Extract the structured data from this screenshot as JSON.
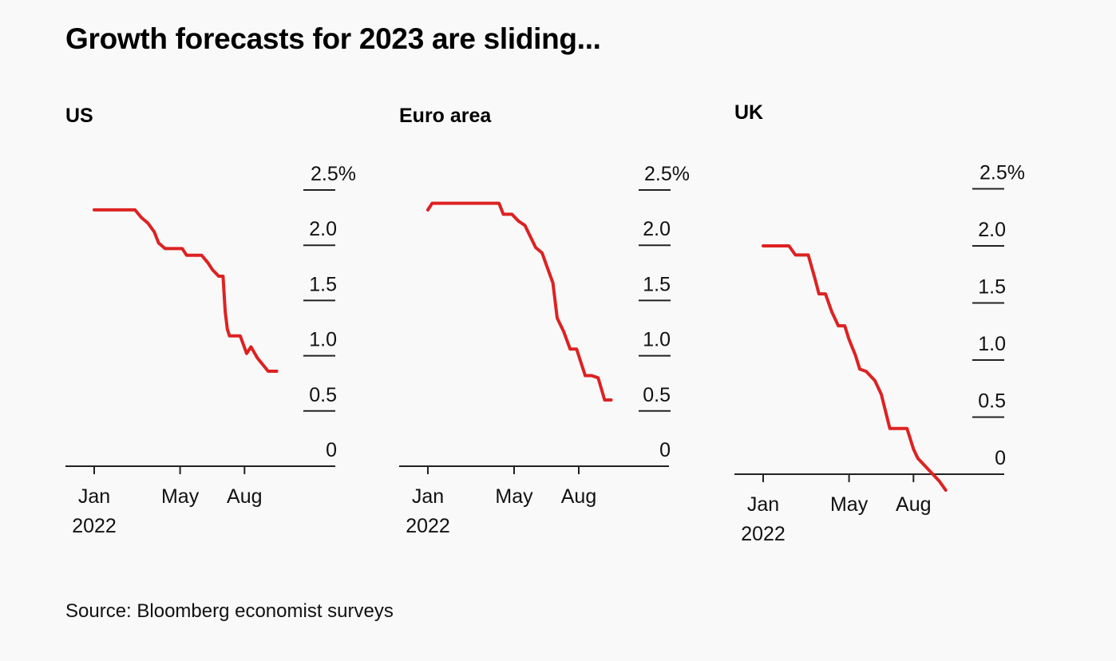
{
  "title": "Growth forecasts for 2023 are sliding...",
  "source": "Source: Bloomberg economist surveys",
  "colors": {
    "line": "#dd2222",
    "axis": "#222222",
    "background": "#f9f9f9"
  },
  "chart_data": [
    {
      "type": "line",
      "title": "US",
      "ylim": [
        0,
        2.5
      ],
      "y_ticks": [
        0,
        0.5,
        1.0,
        1.5,
        2.0,
        2.5
      ],
      "y_tick_labels": [
        "0",
        "0.5",
        "1.0",
        "1.5",
        "2.0",
        "2.5%"
      ],
      "x_ticks": [
        {
          "month": 0,
          "label": "Jan",
          "sublabel": "2022"
        },
        {
          "month": 4,
          "label": "May",
          "sublabel": ""
        },
        {
          "month": 7,
          "label": "Aug",
          "sublabel": ""
        }
      ],
      "x_unit": "months since Jan 2022",
      "series": [
        {
          "x": [
            0,
            1.9,
            2.2,
            2.5,
            2.8,
            3.0,
            3.3,
            4.1,
            4.3,
            5.0,
            5.3,
            5.5,
            5.8,
            6.0,
            6.1,
            6.2,
            6.3,
            6.5,
            6.8,
            7.1,
            7.3,
            7.6,
            8.1,
            8.5
          ],
          "y": [
            2.32,
            2.32,
            2.25,
            2.2,
            2.12,
            2.02,
            1.97,
            1.97,
            1.91,
            1.91,
            1.84,
            1.78,
            1.72,
            1.72,
            1.4,
            1.24,
            1.18,
            1.18,
            1.18,
            1.02,
            1.08,
            0.98,
            0.86,
            0.86
          ]
        }
      ]
    },
    {
      "type": "line",
      "title": "Euro area",
      "ylim": [
        0,
        2.5
      ],
      "y_ticks": [
        0,
        0.5,
        1.0,
        1.5,
        2.0,
        2.5
      ],
      "y_tick_labels": [
        "0",
        "0.5",
        "1.0",
        "1.5",
        "2.0",
        "2.5%"
      ],
      "x_ticks": [
        {
          "month": 0,
          "label": "Jan",
          "sublabel": "2022"
        },
        {
          "month": 4,
          "label": "May",
          "sublabel": ""
        },
        {
          "month": 7,
          "label": "Aug",
          "sublabel": ""
        }
      ],
      "x_unit": "months since Jan 2022",
      "series": [
        {
          "x": [
            0,
            0.2,
            0.4,
            3.3,
            3.5,
            3.9,
            4.2,
            4.5,
            4.8,
            5.0,
            5.3,
            5.5,
            5.8,
            6.0,
            6.3,
            6.6,
            6.9,
            7.3,
            7.6,
            7.9,
            8.2,
            8.5
          ],
          "y": [
            2.32,
            2.38,
            2.38,
            2.38,
            2.28,
            2.28,
            2.22,
            2.18,
            2.06,
            1.98,
            1.93,
            1.82,
            1.66,
            1.34,
            1.22,
            1.06,
            1.06,
            0.82,
            0.82,
            0.8,
            0.6,
            0.6
          ]
        }
      ]
    },
    {
      "type": "line",
      "title": "UK",
      "ylim": [
        0,
        2.5
      ],
      "y_ticks": [
        0,
        0.5,
        1.0,
        1.5,
        2.0,
        2.5
      ],
      "y_tick_labels": [
        "0",
        "0.5",
        "1.0",
        "1.5",
        "2.0",
        "2.5%"
      ],
      "x_ticks": [
        {
          "month": 0,
          "label": "Jan",
          "sublabel": "2022"
        },
        {
          "month": 4,
          "label": "May",
          "sublabel": ""
        },
        {
          "month": 7,
          "label": "Aug",
          "sublabel": ""
        }
      ],
      "x_unit": "months since Jan 2022",
      "series": [
        {
          "x": [
            0,
            1.2,
            1.5,
            2.1,
            2.4,
            2.6,
            2.9,
            3.2,
            3.5,
            3.8,
            4.0,
            4.3,
            4.5,
            4.8,
            5.2,
            5.5,
            5.9,
            6.7,
            7.0,
            7.2,
            7.5,
            7.8,
            8.2,
            8.5
          ],
          "y": [
            2.0,
            2.0,
            1.92,
            1.92,
            1.72,
            1.58,
            1.58,
            1.42,
            1.3,
            1.3,
            1.18,
            1.04,
            0.92,
            0.9,
            0.82,
            0.7,
            0.4,
            0.4,
            0.22,
            0.14,
            0.08,
            0.02,
            -0.06,
            -0.14
          ]
        }
      ]
    }
  ]
}
